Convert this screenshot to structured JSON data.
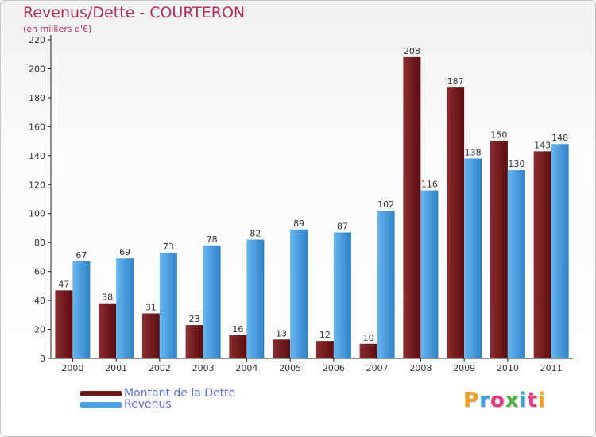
{
  "title": "Revenus/Dette - COURTERON",
  "subtitle": "(en milliers d'€)",
  "logo_text": "Proxiti",
  "logo_colors": [
    "#f0a020",
    "#3aa0e0",
    "#e04080",
    "#50b040",
    "#3aa0e0",
    "#e04080",
    "#f0a020"
  ],
  "colors": {
    "dette_light": "#8a2e31",
    "dette_dark": "#5c0c0e",
    "revenus_light": "#66b6ee",
    "revenus_dark": "#2f82c8",
    "axis": "#222222",
    "grid": "#d0d0d0",
    "label": "#333333"
  },
  "legend": [
    {
      "label": "Montant de la Dette",
      "color": "#6e1a1c"
    },
    {
      "label": "Revenus",
      "color": "#4aa2e6"
    }
  ],
  "chart_data": {
    "type": "bar",
    "title": "Revenus/Dette - COURTERON",
    "subtitle": "(en milliers d'€)",
    "xlabel": "",
    "ylabel": "",
    "ylim": [
      0,
      220
    ],
    "yticks": [
      0,
      20,
      40,
      60,
      80,
      100,
      120,
      140,
      160,
      180,
      200,
      220
    ],
    "grid": false,
    "legend_position": "bottom-left",
    "categories": [
      "2000",
      "2001",
      "2002",
      "2003",
      "2004",
      "2005",
      "2006",
      "2007",
      "2008",
      "2009",
      "2010",
      "2011"
    ],
    "series": [
      {
        "name": "Montant de la Dette",
        "values": [
          47,
          38,
          31,
          23,
          16,
          13,
          12,
          10,
          208,
          187,
          150,
          143
        ]
      },
      {
        "name": "Revenus",
        "values": [
          67,
          69,
          73,
          78,
          82,
          89,
          87,
          102,
          116,
          138,
          130,
          148
        ]
      }
    ]
  }
}
